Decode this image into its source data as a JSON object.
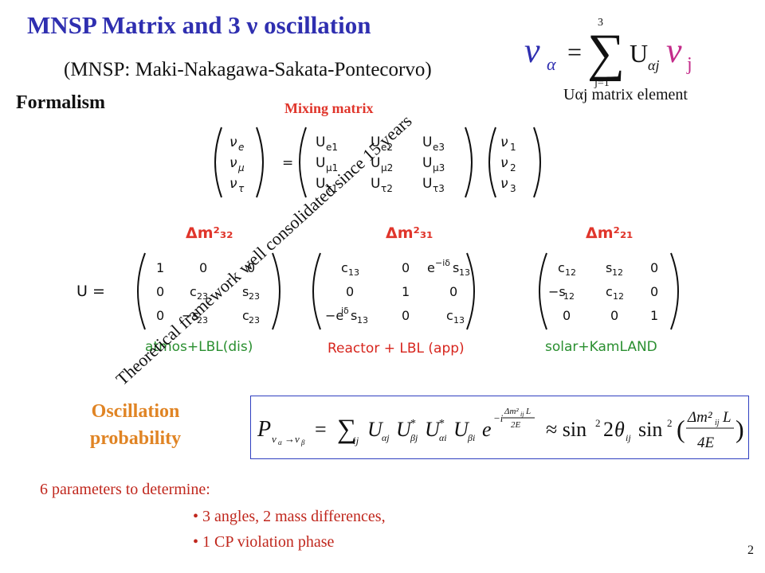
{
  "slide": {
    "title": "MNSP Matrix and 3  ν oscillation",
    "subtitle": "(MNSP: Maki-Nakagawa-Sakata-Pontecorvo)",
    "formalism_heading": "Formalism",
    "mixing_label": "Mixing matrix",
    "element_label": "Uαj matrix element",
    "rotated_note": "Theoretical framework well consolidated since 15 years",
    "mass_labels": [
      "Δm²₃₂",
      "Δm²₃₁",
      "Δm²₂₁"
    ],
    "sector_captions": [
      "atmos+LBL(dis)",
      "Reactor + LBL (app)",
      "solar+KamLAND"
    ],
    "oscillation_label_line1": "Oscillation",
    "oscillation_label_line2": "probability",
    "params_heading": "6 parameters to determine:",
    "bullets": [
      "3 angles, 2 mass differences,",
      "1 CP violation phase"
    ],
    "page_number": "2"
  },
  "colors": {
    "title": "#2f2fb0",
    "accent_red": "#e0352b",
    "accent_green": "#2a8f30",
    "accent_orange": "#e08424",
    "box_border": "#2f3fc0"
  }
}
